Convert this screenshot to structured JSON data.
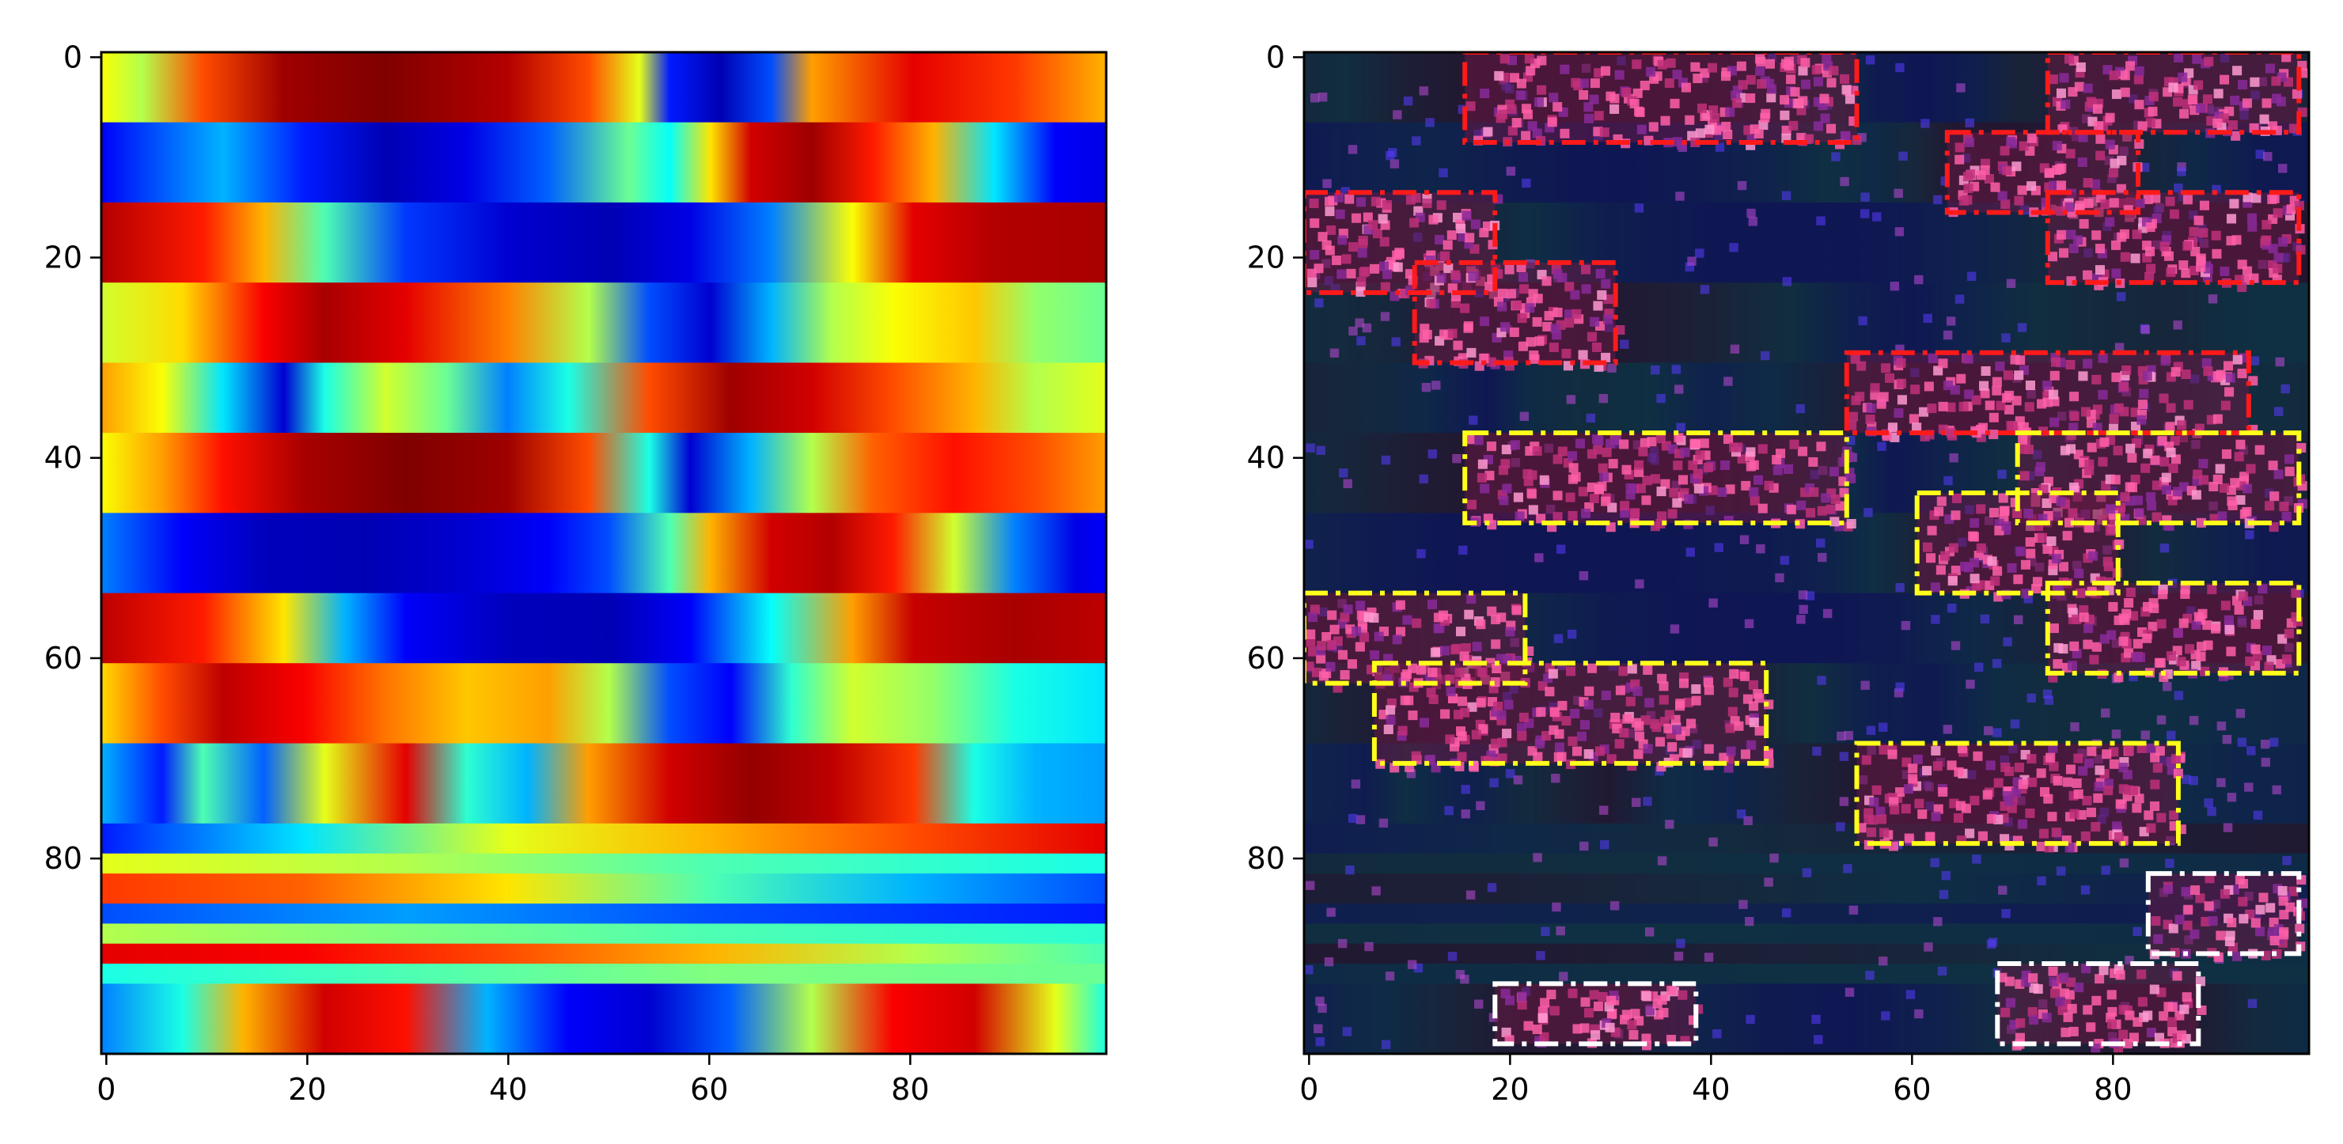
{
  "chart_data": [
    {
      "type": "heatmap",
      "title": "",
      "xlabel": "",
      "ylabel": "",
      "xlim": [
        0,
        99
      ],
      "ylim": [
        99,
        0
      ],
      "xticks": [
        0,
        20,
        40,
        60,
        80
      ],
      "yticks": [
        0,
        20,
        40,
        60,
        80
      ],
      "colormap": "jet",
      "grid": false,
      "bands": [
        {
          "y": [
            0,
            7
          ],
          "segments": [
            [
              0,
              0.62
            ],
            [
              4,
              0.55
            ],
            [
              10,
              0.8
            ],
            [
              18,
              0.97
            ],
            [
              28,
              1.0
            ],
            [
              40,
              0.95
            ],
            [
              48,
              0.8
            ],
            [
              53,
              0.6
            ],
            [
              56,
              0.15
            ],
            [
              61,
              0.05
            ],
            [
              66,
              0.2
            ],
            [
              70,
              0.72
            ],
            [
              80,
              0.9
            ],
            [
              90,
              0.82
            ],
            [
              99,
              0.7
            ]
          ]
        },
        {
          "y": [
            7,
            15
          ],
          "segments": [
            [
              0,
              0.12
            ],
            [
              12,
              0.3
            ],
            [
              20,
              0.15
            ],
            [
              28,
              0.05
            ],
            [
              36,
              0.1
            ],
            [
              44,
              0.22
            ],
            [
              52,
              0.48
            ],
            [
              56,
              0.38
            ],
            [
              60,
              0.65
            ],
            [
              64,
              0.92
            ],
            [
              70,
              0.97
            ],
            [
              76,
              0.85
            ],
            [
              82,
              0.7
            ],
            [
              88,
              0.35
            ],
            [
              94,
              0.12
            ],
            [
              99,
              0.1
            ]
          ]
        },
        {
          "y": [
            15,
            23
          ],
          "segments": [
            [
              0,
              0.95
            ],
            [
              10,
              0.85
            ],
            [
              16,
              0.7
            ],
            [
              22,
              0.45
            ],
            [
              30,
              0.18
            ],
            [
              40,
              0.08
            ],
            [
              50,
              0.05
            ],
            [
              58,
              0.1
            ],
            [
              66,
              0.25
            ],
            [
              74,
              0.62
            ],
            [
              80,
              0.9
            ],
            [
              88,
              0.95
            ],
            [
              99,
              0.96
            ]
          ]
        },
        {
          "y": [
            23,
            31
          ],
          "segments": [
            [
              0,
              0.58
            ],
            [
              8,
              0.66
            ],
            [
              16,
              0.88
            ],
            [
              22,
              0.96
            ],
            [
              30,
              0.9
            ],
            [
              40,
              0.75
            ],
            [
              48,
              0.55
            ],
            [
              54,
              0.2
            ],
            [
              60,
              0.08
            ],
            [
              66,
              0.3
            ],
            [
              72,
              0.55
            ],
            [
              78,
              0.62
            ],
            [
              86,
              0.68
            ],
            [
              92,
              0.52
            ],
            [
              99,
              0.48
            ]
          ]
        },
        {
          "y": [
            31,
            38
          ],
          "segments": [
            [
              0,
              0.72
            ],
            [
              6,
              0.62
            ],
            [
              12,
              0.35
            ],
            [
              18,
              0.08
            ],
            [
              22,
              0.4
            ],
            [
              28,
              0.58
            ],
            [
              34,
              0.48
            ],
            [
              40,
              0.25
            ],
            [
              46,
              0.4
            ],
            [
              54,
              0.8
            ],
            [
              62,
              0.97
            ],
            [
              70,
              0.92
            ],
            [
              78,
              0.8
            ],
            [
              86,
              0.7
            ],
            [
              92,
              0.55
            ],
            [
              99,
              0.6
            ]
          ]
        },
        {
          "y": [
            38,
            46
          ],
          "segments": [
            [
              0,
              0.62
            ],
            [
              6,
              0.72
            ],
            [
              12,
              0.86
            ],
            [
              20,
              0.96
            ],
            [
              30,
              1.0
            ],
            [
              40,
              0.97
            ],
            [
              48,
              0.8
            ],
            [
              54,
              0.4
            ],
            [
              58,
              0.08
            ],
            [
              64,
              0.3
            ],
            [
              70,
              0.55
            ],
            [
              76,
              0.78
            ],
            [
              84,
              0.86
            ],
            [
              92,
              0.8
            ],
            [
              99,
              0.72
            ]
          ]
        },
        {
          "y": [
            46,
            54
          ],
          "segments": [
            [
              0,
              0.25
            ],
            [
              8,
              0.12
            ],
            [
              16,
              0.06
            ],
            [
              26,
              0.05
            ],
            [
              36,
              0.08
            ],
            [
              44,
              0.12
            ],
            [
              50,
              0.2
            ],
            [
              56,
              0.45
            ],
            [
              60,
              0.7
            ],
            [
              66,
              0.92
            ],
            [
              72,
              0.95
            ],
            [
              78,
              0.85
            ],
            [
              84,
              0.58
            ],
            [
              90,
              0.25
            ],
            [
              96,
              0.1
            ],
            [
              99,
              0.12
            ]
          ]
        },
        {
          "y": [
            54,
            61
          ],
          "segments": [
            [
              0,
              0.94
            ],
            [
              10,
              0.85
            ],
            [
              18,
              0.65
            ],
            [
              24,
              0.3
            ],
            [
              30,
              0.12
            ],
            [
              40,
              0.06
            ],
            [
              50,
              0.05
            ],
            [
              58,
              0.12
            ],
            [
              66,
              0.38
            ],
            [
              74,
              0.72
            ],
            [
              80,
              0.93
            ],
            [
              90,
              0.96
            ],
            [
              99,
              0.94
            ]
          ]
        },
        {
          "y": [
            61,
            69
          ],
          "segments": [
            [
              0,
              0.66
            ],
            [
              6,
              0.8
            ],
            [
              12,
              0.94
            ],
            [
              20,
              0.88
            ],
            [
              28,
              0.76
            ],
            [
              36,
              0.68
            ],
            [
              44,
              0.72
            ],
            [
              50,
              0.55
            ],
            [
              56,
              0.2
            ],
            [
              62,
              0.12
            ],
            [
              68,
              0.42
            ],
            [
              74,
              0.58
            ],
            [
              82,
              0.52
            ],
            [
              90,
              0.4
            ],
            [
              99,
              0.35
            ]
          ]
        },
        {
          "y": [
            69,
            77
          ],
          "segments": [
            [
              0,
              0.3
            ],
            [
              6,
              0.15
            ],
            [
              10,
              0.45
            ],
            [
              16,
              0.22
            ],
            [
              22,
              0.6
            ],
            [
              30,
              0.9
            ],
            [
              36,
              0.42
            ],
            [
              42,
              0.3
            ],
            [
              48,
              0.72
            ],
            [
              56,
              0.92
            ],
            [
              64,
              0.98
            ],
            [
              72,
              0.94
            ],
            [
              80,
              0.82
            ],
            [
              86,
              0.4
            ],
            [
              92,
              0.3
            ],
            [
              99,
              0.28
            ]
          ]
        },
        {
          "y": [
            77,
            80
          ],
          "segments": [
            [
              0,
              0.15
            ],
            [
              20,
              0.35
            ],
            [
              40,
              0.6
            ],
            [
              60,
              0.7
            ],
            [
              80,
              0.8
            ],
            [
              99,
              0.9
            ]
          ]
        },
        {
          "y": [
            80,
            82
          ],
          "segments": [
            [
              0,
              0.6
            ],
            [
              30,
              0.55
            ],
            [
              60,
              0.45
            ],
            [
              99,
              0.4
            ]
          ]
        },
        {
          "y": [
            82,
            85
          ],
          "segments": [
            [
              0,
              0.82
            ],
            [
              20,
              0.78
            ],
            [
              40,
              0.65
            ],
            [
              60,
              0.45
            ],
            [
              80,
              0.3
            ],
            [
              99,
              0.2
            ]
          ]
        },
        {
          "y": [
            85,
            87
          ],
          "segments": [
            [
              0,
              0.2
            ],
            [
              30,
              0.28
            ],
            [
              60,
              0.2
            ],
            [
              99,
              0.15
            ]
          ]
        },
        {
          "y": [
            87,
            89
          ],
          "segments": [
            [
              0,
              0.55
            ],
            [
              30,
              0.5
            ],
            [
              60,
              0.45
            ],
            [
              99,
              0.42
            ]
          ]
        },
        {
          "y": [
            89,
            91
          ],
          "segments": [
            [
              0,
              0.9
            ],
            [
              20,
              0.88
            ],
            [
              40,
              0.8
            ],
            [
              60,
              0.7
            ],
            [
              80,
              0.55
            ],
            [
              99,
              0.45
            ]
          ]
        },
        {
          "y": [
            91,
            93
          ],
          "segments": [
            [
              0,
              0.4
            ],
            [
              30,
              0.45
            ],
            [
              60,
              0.5
            ],
            [
              99,
              0.48
            ]
          ]
        },
        {
          "y": [
            93,
            99
          ],
          "segments": [
            [
              0,
              0.25
            ],
            [
              8,
              0.4
            ],
            [
              14,
              0.7
            ],
            [
              22,
              0.92
            ],
            [
              30,
              0.86
            ],
            [
              38,
              0.3
            ],
            [
              46,
              0.12
            ],
            [
              54,
              0.08
            ],
            [
              62,
              0.22
            ],
            [
              70,
              0.55
            ],
            [
              78,
              0.88
            ],
            [
              86,
              0.92
            ],
            [
              94,
              0.6
            ],
            [
              99,
              0.4
            ]
          ]
        }
      ]
    },
    {
      "type": "heatmap",
      "title": "",
      "xlabel": "",
      "ylabel": "",
      "xlim": [
        0,
        99
      ],
      "ylim": [
        99,
        0
      ],
      "xticks": [
        0,
        20,
        40,
        60,
        80
      ],
      "yticks": [
        0,
        20,
        40,
        60,
        80
      ],
      "background_color": "#0a0f3a",
      "grid": false,
      "annotations": [
        {
          "color": "#ff1a1a",
          "x0": 16,
          "y0": 0,
          "x1": 55,
          "y1": 9
        },
        {
          "color": "#ff1a1a",
          "x0": 74,
          "y0": 0,
          "x1": 99,
          "y1": 8
        },
        {
          "color": "#ff1a1a",
          "x0": 64,
          "y0": 8,
          "x1": 83,
          "y1": 16
        },
        {
          "color": "#ff1a1a",
          "x0": 0,
          "y0": 14,
          "x1": 19,
          "y1": 24
        },
        {
          "color": "#ff1a1a",
          "x0": 74,
          "y0": 14,
          "x1": 99,
          "y1": 23
        },
        {
          "color": "#ff1a1a",
          "x0": 11,
          "y0": 21,
          "x1": 31,
          "y1": 31
        },
        {
          "color": "#ff1a1a",
          "x0": 54,
          "y0": 30,
          "x1": 94,
          "y1": 38
        },
        {
          "color": "#ffff1a",
          "x0": 16,
          "y0": 38,
          "x1": 54,
          "y1": 47
        },
        {
          "color": "#ffff1a",
          "x0": 71,
          "y0": 38,
          "x1": 99,
          "y1": 47
        },
        {
          "color": "#ffff1a",
          "x0": 61,
          "y0": 44,
          "x1": 81,
          "y1": 54
        },
        {
          "color": "#ffff1a",
          "x0": 0,
          "y0": 54,
          "x1": 22,
          "y1": 63
        },
        {
          "color": "#ffff1a",
          "x0": 74,
          "y0": 53,
          "x1": 99,
          "y1": 62
        },
        {
          "color": "#ffff1a",
          "x0": 7,
          "y0": 61,
          "x1": 46,
          "y1": 71
        },
        {
          "color": "#ffff1a",
          "x0": 55,
          "y0": 69,
          "x1": 87,
          "y1": 79
        },
        {
          "color": "#ffffff",
          "x0": 84,
          "y0": 82,
          "x1": 99,
          "y1": 90
        },
        {
          "color": "#ffffff",
          "x0": 69,
          "y0": 91,
          "x1": 89,
          "y1": 99
        },
        {
          "color": "#ffffff",
          "x0": 19,
          "y0": 93,
          "x1": 39,
          "y1": 99
        }
      ]
    }
  ]
}
